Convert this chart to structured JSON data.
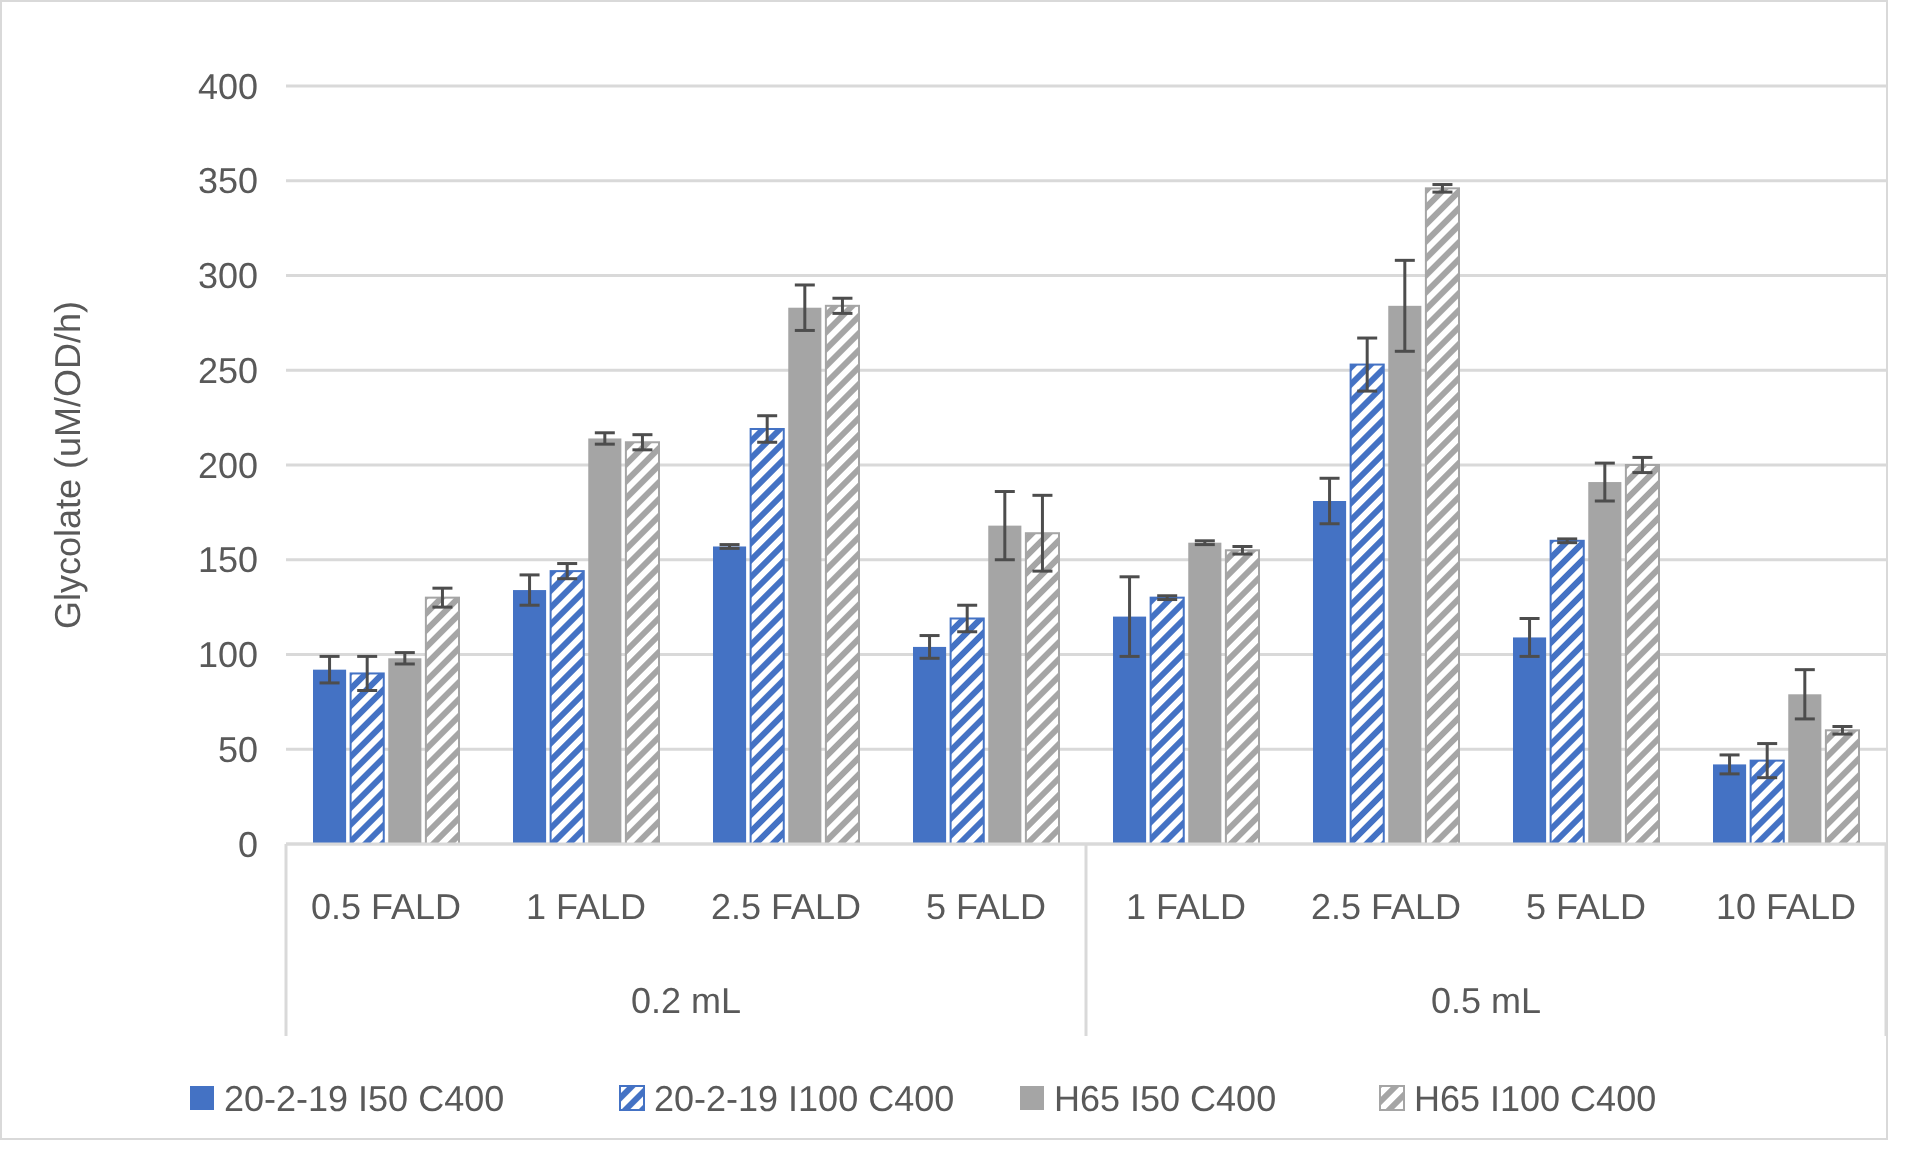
{
  "chart_data": {
    "type": "bar",
    "ylabel": "Glycolate (uM/OD/h)",
    "categories": [
      "0.5 FALD",
      "1 FALD",
      "2.5 FALD",
      "5 FALD",
      "1 FALD",
      "2.5 FALD",
      "5 FALD",
      "10 FALD"
    ],
    "annotations": [
      "0.2 mL",
      "0.5 mL"
    ],
    "ylim": [
      0,
      400
    ],
    "yticks": [
      0,
      50,
      100,
      150,
      200,
      250,
      300,
      350,
      400
    ],
    "grid": "y",
    "legend": "bottom",
    "series": [
      {
        "name": "20-2-19 I50 C400",
        "color": "#4472c4",
        "values": [
          92,
          134,
          157,
          104,
          120,
          181,
          109,
          42
        ],
        "errors": [
          7,
          8,
          1,
          6,
          21,
          12,
          10,
          5
        ]
      },
      {
        "name": "20-2-19 I100 C400",
        "color": "#4472c4",
        "values": [
          90,
          144,
          219,
          119,
          130,
          253,
          160,
          44
        ],
        "errors": [
          9,
          4,
          7,
          7,
          1,
          14,
          1,
          9
        ]
      },
      {
        "name": "H65 I50 C400",
        "color": "#a5a5a5",
        "values": [
          98,
          214,
          283,
          168,
          159,
          284,
          191,
          79
        ],
        "errors": [
          3,
          3,
          12,
          18,
          1,
          24,
          10,
          13
        ]
      },
      {
        "name": "H65 I100 C400",
        "color": "#a5a5a5",
        "values": [
          130,
          212,
          284,
          164,
          155,
          346,
          200,
          60
        ],
        "errors": [
          5,
          4,
          4,
          20,
          2,
          2,
          4,
          2
        ]
      }
    ]
  }
}
